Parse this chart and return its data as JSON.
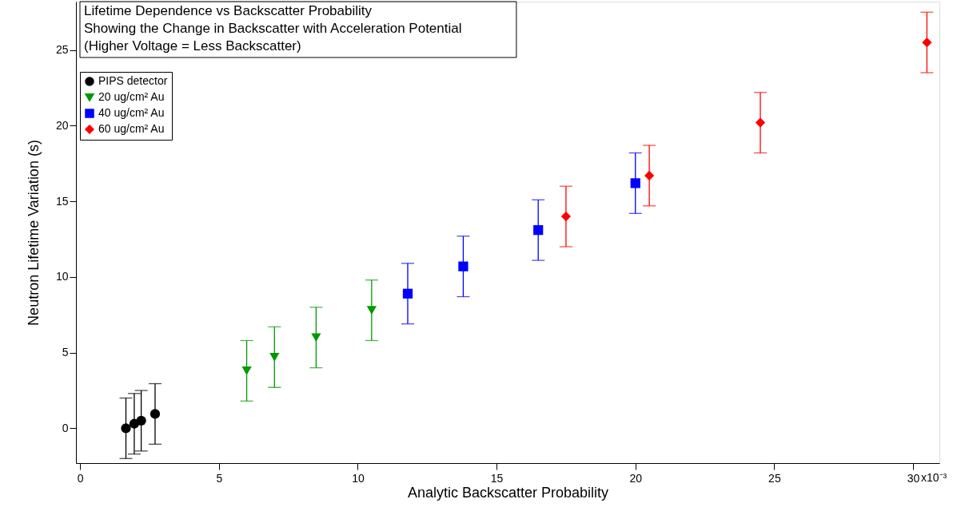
{
  "chart_data": {
    "type": "scatter",
    "title": "Lifetime Dependence vs Backscatter Probability",
    "annotations": [
      "Showing the Change in Backscatter with Acceleration Potential",
      "(Higher Voltage = Less Backscatter)",
      "x10⁻³"
    ],
    "xlabel": "Analytic Backscatter Probability",
    "ylabel": "Neutron Lifetime Variation (s)",
    "xlim": [
      -0.15,
      30.95
    ],
    "xticks": [
      0,
      5,
      10,
      15,
      20,
      25,
      30
    ],
    "ylim": [
      -2.3,
      28.2
    ],
    "yticks": [
      0,
      5,
      10,
      15,
      20,
      25
    ],
    "grid": false,
    "legend": "top left",
    "series": [
      {
        "name": "PIPS detector",
        "color": "#000000",
        "marker": "circle",
        "x": [
          1.65,
          1.95,
          2.2,
          2.7
        ],
        "values": [
          0,
          0.3,
          0.5,
          0.95
        ],
        "errors": [
          2,
          2,
          2,
          2
        ]
      },
      {
        "name": "20 ug/cm² Au",
        "color": "#009900",
        "marker": "triangle",
        "x": [
          6.0,
          7.0,
          8.5,
          10.5
        ],
        "values": [
          3.8,
          4.7,
          6.0,
          7.8
        ],
        "errors": [
          2,
          2,
          2,
          2
        ]
      },
      {
        "name": "40 ug/cm² Au",
        "color": "#0000ff",
        "marker": "square",
        "x": [
          11.8,
          13.8,
          16.5,
          20.0
        ],
        "values": [
          8.9,
          10.7,
          13.1,
          16.2
        ],
        "errors": [
          2,
          2,
          2,
          2
        ]
      },
      {
        "name": "60 ug/cm² Au",
        "color": "#ff0000",
        "marker": "diamond",
        "x": [
          17.5,
          20.5,
          24.5,
          30.5
        ],
        "values": [
          14.0,
          16.7,
          20.2,
          25.5
        ],
        "errors": [
          2,
          2,
          2,
          2
        ]
      }
    ]
  }
}
